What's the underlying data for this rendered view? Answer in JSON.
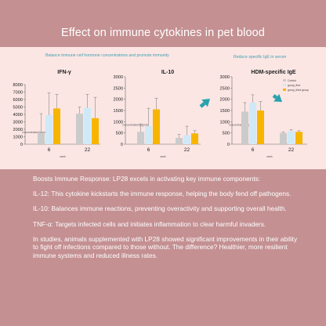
{
  "title": "Effect on immune cytokines in pet blood",
  "subtitles": {
    "left": "Balance immune cell hormone concentrations and promote immunity",
    "right": "Reduce specific IgE in serum"
  },
  "legend": [
    "Control",
    "group_first",
    "group_third group"
  ],
  "colors": {
    "control": "#cbcbcb",
    "group_first": "#cfe9f7",
    "group_third": "#f7b500",
    "arrow": "#28a2ad",
    "axis": "#666666",
    "text": "#222222"
  },
  "paragraphs": {
    "p1": "Boosts Immune Response: LP28 excels in activating key immune components:",
    "p2": "IL-12: This cytokine kickstarts the immune response, helping the body fend off pathogens.",
    "p3": "IL-10: Balances immune reactions, preventing overactivity and supporting overall health.",
    "p4": "TNF-α: Targets infected cells and initiates inflammation to clear harmful invaders.",
    "p5": "In studies, animals supplemented with LP28 showed significant improvements in their ability to fight off infections compared to those without. The difference? Healthier, more resilient immune systems and reduced illness rates."
  },
  "chart_data": [
    {
      "type": "bar",
      "title": "IFN-γ",
      "categories": [
        "6",
        "22"
      ],
      "ylim": [
        0,
        8000
      ],
      "yticks": [
        0,
        1000,
        2000,
        3000,
        4000,
        5000,
        6000,
        7000,
        8000
      ],
      "ylabel": "Concentration/(pg/ml)",
      "xlabel": "week",
      "series": [
        {
          "name": "Control",
          "values": [
            1500,
            4100
          ],
          "errors": [
            2600,
            900
          ]
        },
        {
          "name": "group_first",
          "values": [
            3900,
            4900
          ],
          "errors": [
            3000,
            1800
          ]
        },
        {
          "name": "group_third group",
          "values": [
            4800,
            3500
          ],
          "errors": [
            1900,
            2800
          ]
        }
      ]
    },
    {
      "type": "bar",
      "title": "IL-10",
      "categories": [
        "6",
        "22"
      ],
      "ylim": [
        0,
        3000
      ],
      "yticks": [
        0,
        500,
        1000,
        1500,
        2000,
        2500,
        3000
      ],
      "ylabel": "Concentration/(pg/ml)",
      "xlabel": "week",
      "series": [
        {
          "name": "Control",
          "values": [
            550,
            280
          ],
          "errors": [
            350,
            150
          ]
        },
        {
          "name": "group_first",
          "values": [
            800,
            400
          ],
          "errors": [
            800,
            400
          ]
        },
        {
          "name": "group_third group",
          "values": [
            1550,
            480
          ],
          "errors": [
            500,
            120
          ]
        }
      ]
    },
    {
      "type": "bar",
      "title": "HDM-specific IgE",
      "categories": [
        "6",
        "22"
      ],
      "ylim": [
        0,
        3000
      ],
      "yticks": [
        0,
        500,
        1000,
        1500,
        2000,
        2500,
        3000
      ],
      "ylabel": "Concentration/(pg/ml)",
      "xlabel": "week",
      "series": [
        {
          "name": "Control",
          "values": [
            1450,
            500
          ],
          "errors": [
            400,
            50
          ]
        },
        {
          "name": "group_first",
          "values": [
            1850,
            580
          ],
          "errors": [
            350,
            60
          ]
        },
        {
          "name": "group_third group",
          "values": [
            1500,
            550
          ],
          "errors": [
            400,
            50
          ]
        }
      ]
    }
  ]
}
